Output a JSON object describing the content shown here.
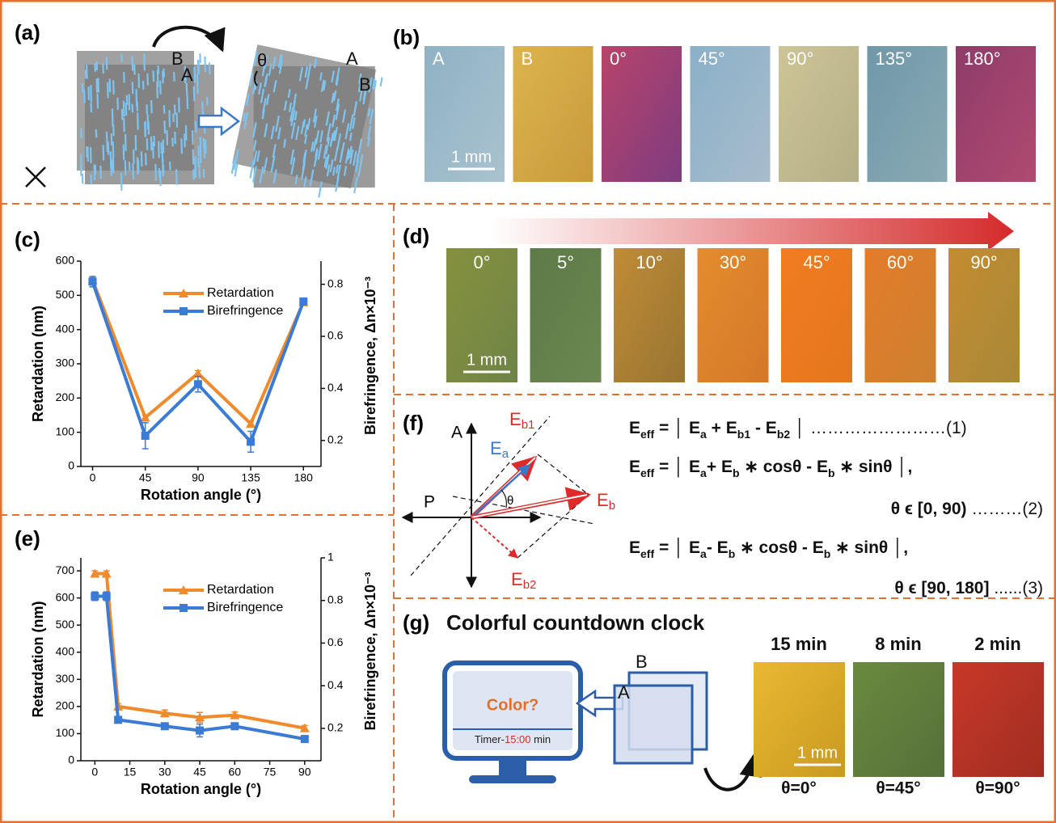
{
  "panel_labels": [
    "(a)",
    "(b)",
    "(c)",
    "(d)",
    "(e)",
    "(f)",
    "(g)"
  ],
  "a": {
    "labels": [
      "B",
      "A",
      "θ",
      "A",
      "B"
    ]
  },
  "b": {
    "scale": "1 mm",
    "photos": [
      {
        "label": "A",
        "colors": [
          "#8fb2c4",
          "#a9c2cf"
        ]
      },
      {
        "label": "B",
        "colors": [
          "#dcb44e",
          "#c99a3a"
        ]
      },
      {
        "label": "0°",
        "colors": [
          "#b8446a",
          "#7e3c80"
        ]
      },
      {
        "label": "45°",
        "colors": [
          "#8ab0c8",
          "#a8bccc"
        ]
      },
      {
        "label": "90°",
        "colors": [
          "#cdc597",
          "#b4ae86"
        ]
      },
      {
        "label": "135°",
        "colors": [
          "#6f98a8",
          "#8aaab4"
        ]
      },
      {
        "label": "180°",
        "colors": [
          "#8e3c6a",
          "#b04a70"
        ]
      }
    ]
  },
  "d": {
    "scale": "1 mm",
    "photos": [
      {
        "label": "0°",
        "colors": [
          "#86913e",
          "#6e8446"
        ]
      },
      {
        "label": "5°",
        "colors": [
          "#5e7a48",
          "#6a8850"
        ]
      },
      {
        "label": "10°",
        "colors": [
          "#c08c36",
          "#987432"
        ]
      },
      {
        "label": "30°",
        "colors": [
          "#e48c2e",
          "#d47828"
        ]
      },
      {
        "label": "45°",
        "colors": [
          "#f27c22",
          "#e4761c"
        ]
      },
      {
        "label": "60°",
        "colors": [
          "#e47c2a",
          "#cc8030"
        ]
      },
      {
        "label": "90°",
        "colors": [
          "#c48c30",
          "#a88838"
        ]
      }
    ]
  },
  "chart_data": [
    {
      "type": "line",
      "x": [
        0,
        45,
        90,
        135,
        180
      ],
      "xlim": [
        -10,
        195
      ],
      "xticks": [
        0,
        45,
        90,
        135,
        180
      ],
      "ylim": [
        0,
        600
      ],
      "yticks": [
        0,
        100,
        200,
        300,
        400,
        500,
        600
      ],
      "y2lim": [
        0.1,
        0.889
      ],
      "y2ticks": [
        0.2,
        0.4,
        0.6,
        0.8
      ],
      "xlabel": "Rotation angle (°)",
      "ylabel": "Retardation (nm)",
      "y2label": "Birefringence, Δn×10⁻³",
      "legend": "upper right",
      "series": [
        {
          "name": "Retardation",
          "color": "#f08a2a",
          "marker": "triangle",
          "values": [
            545,
            143,
            272,
            125,
            480
          ],
          "errors": [
            8,
            6,
            8,
            6,
            6
          ]
        },
        {
          "name": "Birefringence",
          "color": "#3a7bd5",
          "marker": "square",
          "axis": "y2",
          "values": [
            0.81,
            0.218,
            0.416,
            0.195,
            0.734
          ],
          "errors": [
            0.02,
            0.05,
            0.03,
            0.04,
            0.01
          ]
        }
      ]
    },
    {
      "type": "line",
      "x": [
        0,
        5,
        10,
        30,
        45,
        60,
        90
      ],
      "xlim": [
        -6,
        97
      ],
      "xticks": [
        0,
        15,
        30,
        45,
        60,
        75,
        90
      ],
      "ylim": [
        0,
        748
      ],
      "yticks": [
        0,
        100,
        200,
        300,
        400,
        500,
        600,
        700
      ],
      "y2lim": [
        0.048,
        1.0
      ],
      "y2ticks": [
        0.2,
        0.4,
        0.6,
        0.8,
        1.0
      ],
      "xlabel": "Rotation angle (°)",
      "ylabel": "Retardation (nm)",
      "y2label": "Birefringence, Δn×10⁻³",
      "legend": "upper right",
      "series": [
        {
          "name": "Retardation",
          "color": "#f08a2a",
          "marker": "triangle",
          "values": [
            690,
            690,
            200,
            175,
            160,
            168,
            120
          ],
          "errors": [
            10,
            10,
            10,
            12,
            18,
            12,
            10
          ]
        },
        {
          "name": "Birefringence",
          "color": "#3a7bd5",
          "marker": "square",
          "axis": "y2",
          "values": [
            0.82,
            0.82,
            0.24,
            0.21,
            0.19,
            0.21,
            0.15
          ],
          "errors": [
            0.02,
            0.02,
            0.01,
            0.01,
            0.03,
            0.01,
            0.01
          ]
        }
      ]
    }
  ],
  "f": {
    "axis_labels": [
      "A",
      "P"
    ],
    "theta": "θ",
    "vectors": [
      [
        "E",
        "a"
      ],
      [
        "E",
        "b1"
      ],
      [
        "E",
        "b"
      ],
      [
        "E",
        "b2"
      ]
    ],
    "equations": [
      [
        [
          "E",
          "eff",
          " = │ E",
          "a",
          " + E",
          "b1",
          " - E",
          "b2",
          " │"
        ],
        [
          "",
          "",
          "……………………(1)"
        ]
      ],
      [
        [
          "E",
          "eff",
          " = │ E",
          "a",
          "+ E",
          "b",
          " ∗ cosθ - E",
          "b",
          " ∗ sinθ │,"
        ],
        [
          "θ ϵ [0, 90)",
          "",
          " ………(2)"
        ]
      ],
      [
        [
          "E",
          "eff",
          " = │ E",
          "a",
          "- E",
          "b",
          " ∗ cosθ - E",
          "b",
          " ∗ sinθ │,"
        ],
        [
          "θ ϵ [90, 180]",
          "",
          " ......(3)"
        ]
      ]
    ]
  },
  "g": {
    "title": "Colorful countdown clock",
    "screen": "Color?",
    "timer": [
      "Timer-",
      "15:00",
      " min"
    ],
    "sheets": [
      "B",
      "A"
    ],
    "scale": "1 mm",
    "photos": [
      {
        "label": "15 min",
        "angle": "θ=0°",
        "colors": [
          "#eab832",
          "#c89a20"
        ]
      },
      {
        "label": "8 min",
        "angle": "θ=45°",
        "colors": [
          "#6a8a3e",
          "#56703a"
        ]
      },
      {
        "label": "2 min",
        "angle": "θ=90°",
        "colors": [
          "#c83828",
          "#a02e22"
        ]
      }
    ]
  }
}
